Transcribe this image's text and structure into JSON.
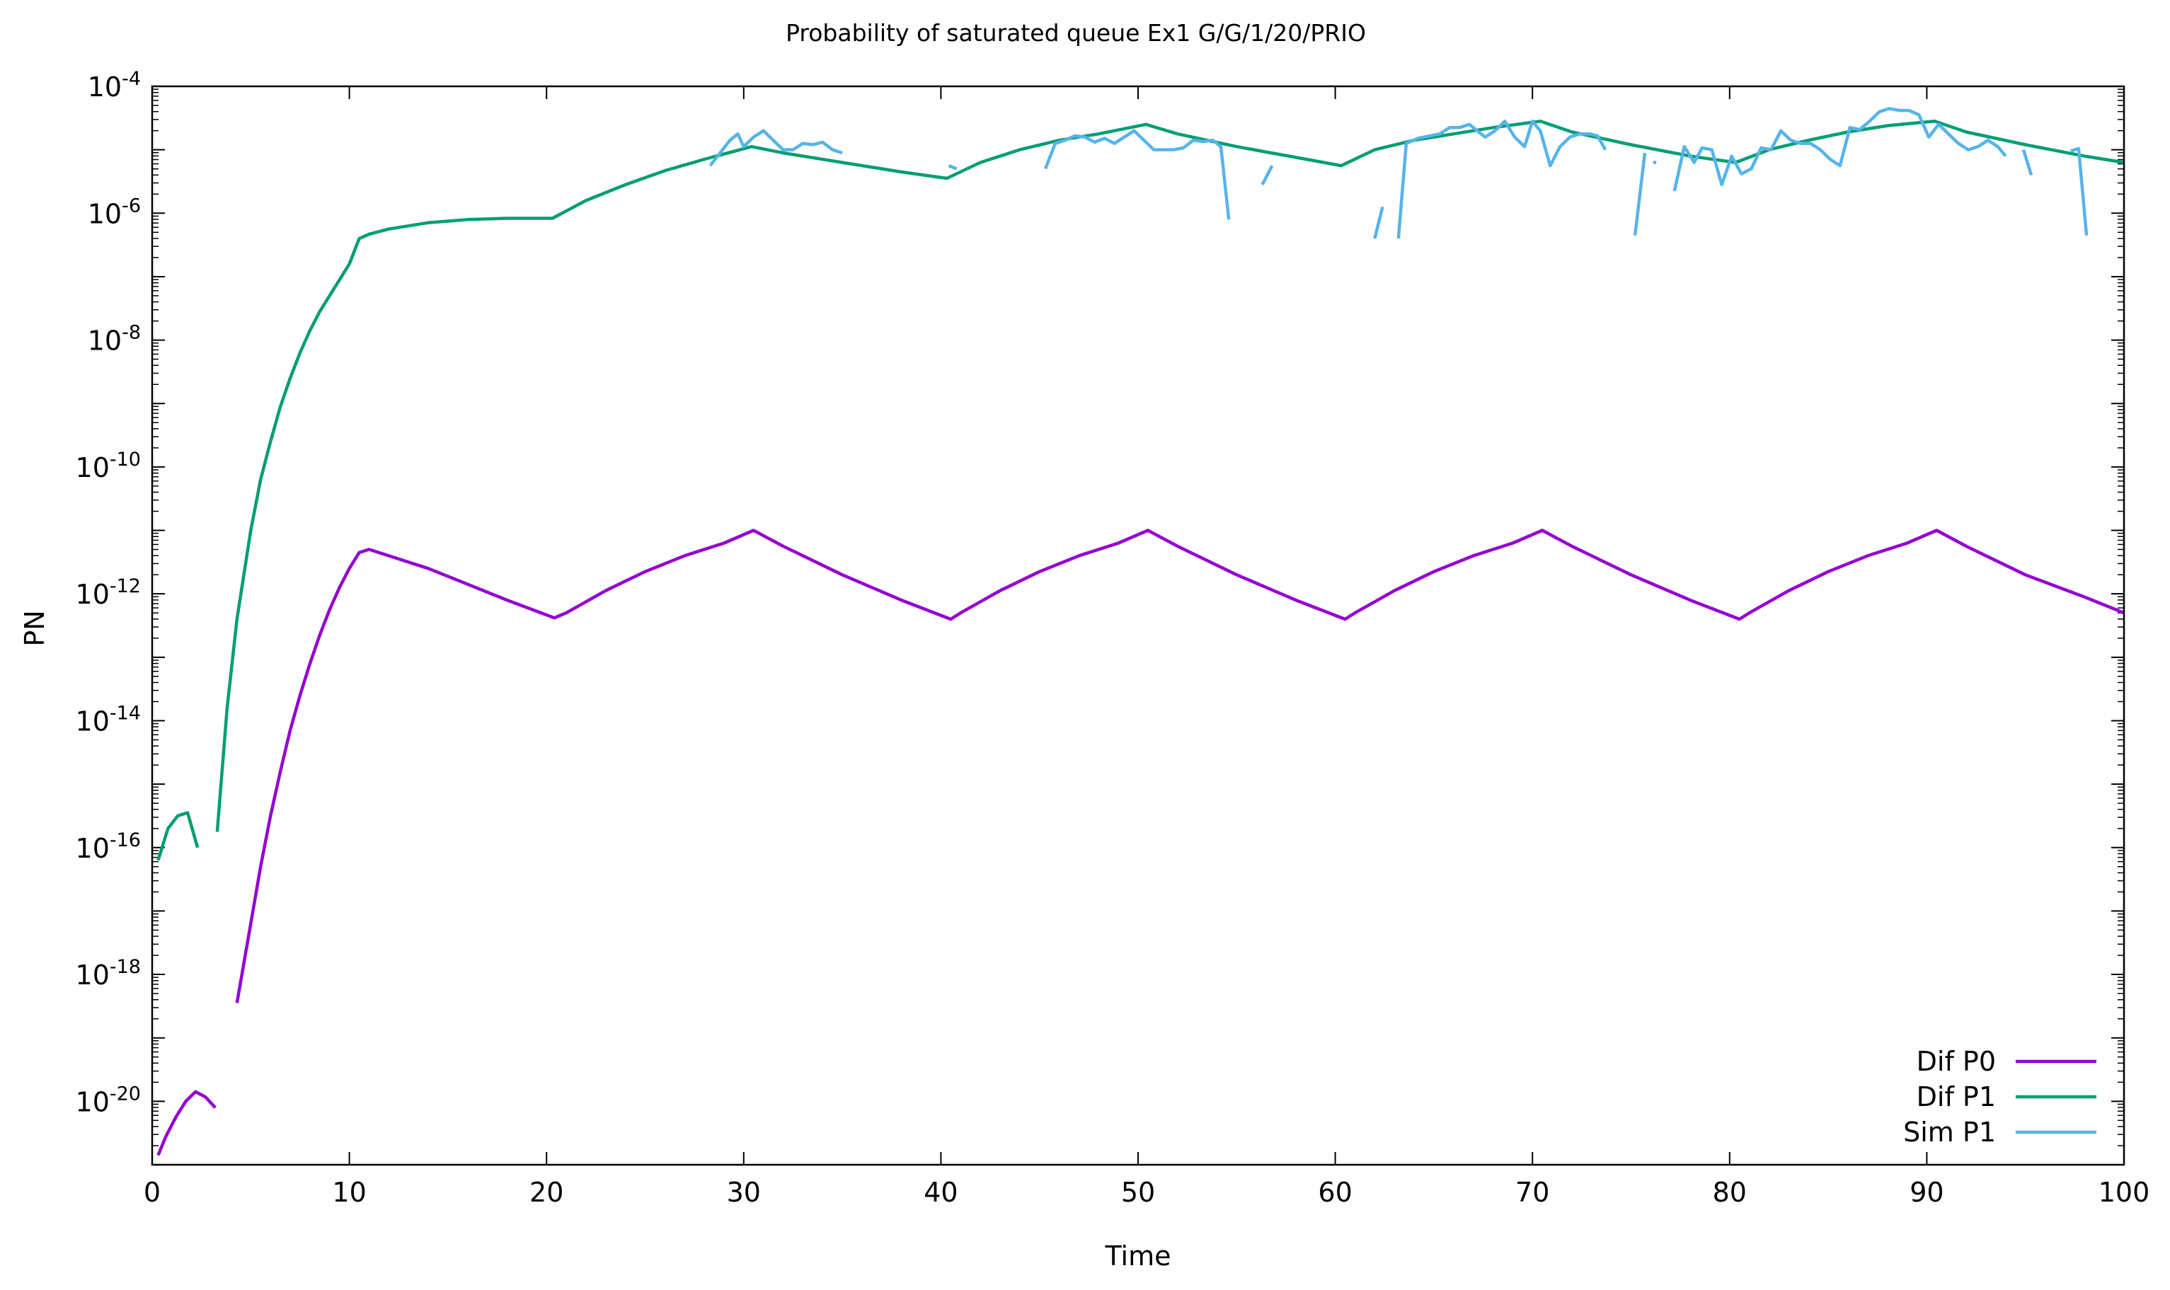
{
  "chart_data": {
    "type": "line",
    "title": "Probability of saturated queue Ex1 G/G/1/20/PRIO",
    "xlabel": "Time",
    "ylabel": "PN",
    "xlim": [
      0,
      100
    ],
    "ylim_log10": [
      -21,
      -4
    ],
    "yscale": "log",
    "grid": false,
    "legend_position": "bottom-right",
    "x_ticks": [
      "0",
      "10",
      "20",
      "30",
      "40",
      "50",
      "60",
      "70",
      "80",
      "90",
      "100"
    ],
    "y_ticks": [
      {
        "base": "10",
        "exp": "-20"
      },
      {
        "base": "10",
        "exp": "-18"
      },
      {
        "base": "10",
        "exp": "-16"
      },
      {
        "base": "10",
        "exp": "-14"
      },
      {
        "base": "10",
        "exp": "-12"
      },
      {
        "base": "10",
        "exp": "-10"
      },
      {
        "base": "10",
        "exp": "-8"
      },
      {
        "base": "10",
        "exp": "-6"
      },
      {
        "base": "10",
        "exp": "-4"
      }
    ],
    "series": [
      {
        "name": "Dif P0",
        "color": "#9400d3",
        "segments": [
          [
            [
              0.3,
              -20.85
            ],
            [
              0.7,
              -20.55
            ],
            [
              1.2,
              -20.25
            ],
            [
              1.7,
              -20.0
            ],
            [
              2.2,
              -19.85
            ],
            [
              2.7,
              -19.93
            ],
            [
              3.2,
              -20.1
            ]
          ],
          [
            [
              4.3,
              -18.45
            ],
            [
              5,
              -17.2
            ],
            [
              5.5,
              -16.3
            ],
            [
              6,
              -15.5
            ],
            [
              6.5,
              -14.8
            ],
            [
              7,
              -14.15
            ],
            [
              7.5,
              -13.6
            ],
            [
              8,
              -13.1
            ],
            [
              8.5,
              -12.65
            ],
            [
              9,
              -12.25
            ],
            [
              9.5,
              -11.9
            ],
            [
              10,
              -11.6
            ],
            [
              10.5,
              -11.35
            ],
            [
              11,
              -11.3
            ],
            [
              12,
              -11.4
            ],
            [
              14,
              -11.6
            ],
            [
              16,
              -11.85
            ],
            [
              18,
              -12.1
            ],
            [
              20.4,
              -12.38
            ],
            [
              21,
              -12.3
            ],
            [
              23,
              -11.95
            ],
            [
              25,
              -11.65
            ],
            [
              27,
              -11.4
            ],
            [
              29,
              -11.2
            ],
            [
              30.5,
              -11.0
            ],
            [
              32,
              -11.25
            ],
            [
              35,
              -11.7
            ],
            [
              38,
              -12.1
            ],
            [
              40.5,
              -12.4
            ],
            [
              41,
              -12.3
            ],
            [
              43,
              -11.95
            ],
            [
              45,
              -11.65
            ],
            [
              47,
              -11.4
            ],
            [
              49,
              -11.2
            ],
            [
              50.5,
              -11.0
            ],
            [
              52,
              -11.25
            ],
            [
              55,
              -11.7
            ],
            [
              58,
              -12.1
            ],
            [
              60.5,
              -12.4
            ],
            [
              61,
              -12.3
            ],
            [
              63,
              -11.95
            ],
            [
              65,
              -11.65
            ],
            [
              67,
              -11.4
            ],
            [
              69,
              -11.2
            ],
            [
              70.5,
              -11.0
            ],
            [
              72,
              -11.25
            ],
            [
              75,
              -11.7
            ],
            [
              78,
              -12.1
            ],
            [
              80.5,
              -12.4
            ],
            [
              81,
              -12.3
            ],
            [
              83,
              -11.95
            ],
            [
              85,
              -11.65
            ],
            [
              87,
              -11.4
            ],
            [
              89,
              -11.2
            ],
            [
              90.5,
              -11.0
            ],
            [
              92,
              -11.25
            ],
            [
              95,
              -11.7
            ],
            [
              98,
              -12.05
            ],
            [
              100,
              -12.3
            ]
          ]
        ]
      },
      {
        "name": "Dif P1",
        "color": "#009e73",
        "segments": [
          [
            [
              0.3,
              -16.2
            ],
            [
              0.8,
              -15.7
            ],
            [
              1.3,
              -15.5
            ],
            [
              1.8,
              -15.45
            ],
            [
              2.3,
              -16.0
            ]
          ],
          [
            [
              3.3,
              -15.75
            ],
            [
              3.8,
              -13.8
            ],
            [
              4.3,
              -12.4
            ],
            [
              5,
              -11.0
            ],
            [
              5.5,
              -10.2
            ],
            [
              6,
              -9.6
            ],
            [
              6.5,
              -9.05
            ],
            [
              7,
              -8.6
            ],
            [
              7.5,
              -8.2
            ],
            [
              8,
              -7.85
            ],
            [
              8.5,
              -7.55
            ],
            [
              9,
              -7.3
            ],
            [
              9.5,
              -7.05
            ],
            [
              10,
              -6.8
            ],
            [
              10.5,
              -6.4
            ],
            [
              11,
              -6.33
            ],
            [
              12,
              -6.25
            ],
            [
              14,
              -6.15
            ],
            [
              16,
              -6.1
            ],
            [
              18,
              -6.08
            ],
            [
              20.3,
              -6.08
            ],
            [
              22,
              -5.8
            ],
            [
              24,
              -5.55
            ],
            [
              26,
              -5.33
            ],
            [
              28,
              -5.15
            ],
            [
              30.4,
              -4.95
            ],
            [
              32,
              -5.05
            ],
            [
              35,
              -5.2
            ],
            [
              38,
              -5.35
            ],
            [
              40.3,
              -5.45
            ],
            [
              42,
              -5.2
            ],
            [
              44,
              -5.0
            ],
            [
              46,
              -4.85
            ],
            [
              48,
              -4.75
            ],
            [
              50.4,
              -4.6
            ],
            [
              52,
              -4.75
            ],
            [
              55,
              -4.95
            ],
            [
              58,
              -5.12
            ],
            [
              60.3,
              -5.25
            ],
            [
              62,
              -5.0
            ],
            [
              64,
              -4.85
            ],
            [
              66,
              -4.75
            ],
            [
              68,
              -4.65
            ],
            [
              70.4,
              -4.55
            ],
            [
              72,
              -4.72
            ],
            [
              75,
              -4.92
            ],
            [
              78,
              -5.1
            ],
            [
              80.3,
              -5.2
            ],
            [
              82,
              -5.0
            ],
            [
              84,
              -4.85
            ],
            [
              86,
              -4.72
            ],
            [
              88,
              -4.62
            ],
            [
              90.4,
              -4.55
            ],
            [
              92,
              -4.72
            ],
            [
              95,
              -4.92
            ],
            [
              98,
              -5.1
            ],
            [
              100,
              -5.2
            ]
          ]
        ]
      },
      {
        "name": "Sim P1",
        "color": "#56b4e9",
        "segments": [
          [
            [
              28.3,
              -5.25
            ],
            [
              28.8,
              -5.05
            ],
            [
              29.3,
              -4.85
            ],
            [
              29.7,
              -4.75
            ],
            [
              30,
              -4.95
            ],
            [
              30.5,
              -4.8
            ],
            [
              31,
              -4.7
            ],
            [
              31.5,
              -4.85
            ],
            [
              32,
              -5.0
            ],
            [
              32.5,
              -5.0
            ],
            [
              33,
              -4.9
            ],
            [
              33.5,
              -4.92
            ],
            [
              34,
              -4.88
            ],
            [
              34.5,
              -5.0
            ],
            [
              35,
              -5.05
            ]
          ],
          [
            [
              40.4,
              -5.25
            ],
            [
              40.8,
              -5.3
            ]
          ],
          [
            [
              45.3,
              -5.3
            ],
            [
              45.8,
              -4.9
            ],
            [
              46.3,
              -4.85
            ],
            [
              46.8,
              -4.78
            ],
            [
              47.3,
              -4.8
            ],
            [
              47.8,
              -4.88
            ],
            [
              48.3,
              -4.82
            ],
            [
              48.8,
              -4.9
            ],
            [
              49.3,
              -4.8
            ],
            [
              49.8,
              -4.7
            ],
            [
              50.3,
              -4.85
            ],
            [
              50.8,
              -5.0
            ],
            [
              51.3,
              -5.0
            ],
            [
              51.8,
              -5.0
            ],
            [
              52.3,
              -4.97
            ],
            [
              52.8,
              -4.85
            ],
            [
              53.3,
              -4.87
            ],
            [
              53.8,
              -4.85
            ],
            [
              54.2,
              -4.95
            ],
            [
              54.6,
              -6.1
            ]
          ],
          [
            [
              56.3,
              -5.55
            ],
            [
              56.8,
              -5.25
            ]
          ],
          [
            [
              62,
              -6.4
            ],
            [
              62.4,
              -5.9
            ]
          ],
          [
            [
              63.2,
              -6.4
            ],
            [
              63.6,
              -4.9
            ],
            [
              64.2,
              -4.82
            ],
            [
              64.8,
              -4.78
            ],
            [
              65.3,
              -4.75
            ],
            [
              65.8,
              -4.65
            ],
            [
              66.3,
              -4.65
            ],
            [
              66.8,
              -4.6
            ],
            [
              67.2,
              -4.7
            ],
            [
              67.6,
              -4.8
            ],
            [
              68.1,
              -4.7
            ],
            [
              68.6,
              -4.55
            ],
            [
              69.1,
              -4.8
            ],
            [
              69.6,
              -4.95
            ],
            [
              70,
              -4.55
            ],
            [
              70.4,
              -4.7
            ],
            [
              70.9,
              -5.25
            ],
            [
              71.4,
              -4.95
            ],
            [
              71.9,
              -4.8
            ],
            [
              72.4,
              -4.75
            ],
            [
              72.9,
              -4.75
            ],
            [
              73.3,
              -4.78
            ],
            [
              73.7,
              -5.0
            ]
          ],
          [
            [
              75.2,
              -6.35
            ],
            [
              75.7,
              -5.05
            ]
          ],
          [
            [
              76.2,
              -5.2
            ]
          ],
          [
            [
              77.2,
              -5.65
            ],
            [
              77.7,
              -4.95
            ],
            [
              78.2,
              -5.2
            ],
            [
              78.6,
              -4.97
            ],
            [
              79.1,
              -5.0
            ],
            [
              79.6,
              -5.55
            ],
            [
              80.1,
              -5.1
            ],
            [
              80.6,
              -5.38
            ],
            [
              81.1,
              -5.3
            ],
            [
              81.6,
              -4.97
            ],
            [
              82.1,
              -5.0
            ],
            [
              82.6,
              -4.7
            ],
            [
              83.1,
              -4.85
            ],
            [
              83.6,
              -4.9
            ],
            [
              84.1,
              -4.9
            ],
            [
              84.6,
              -5.0
            ],
            [
              85.1,
              -5.15
            ],
            [
              85.6,
              -5.25
            ],
            [
              86.1,
              -4.65
            ],
            [
              86.6,
              -4.68
            ],
            [
              87.1,
              -4.55
            ],
            [
              87.6,
              -4.4
            ],
            [
              88.1,
              -4.35
            ],
            [
              88.6,
              -4.38
            ],
            [
              89.1,
              -4.38
            ],
            [
              89.6,
              -4.45
            ],
            [
              90.1,
              -4.8
            ],
            [
              90.6,
              -4.6
            ],
            [
              91.1,
              -4.75
            ],
            [
              91.6,
              -4.9
            ],
            [
              92.1,
              -5.0
            ],
            [
              92.6,
              -4.95
            ],
            [
              93.1,
              -4.85
            ],
            [
              93.6,
              -4.95
            ],
            [
              94,
              -5.1
            ]
          ],
          [
            [
              94.9,
              -5.0
            ],
            [
              95.3,
              -5.4
            ]
          ],
          [
            [
              97.3,
              -5.02
            ],
            [
              97.7,
              -4.98
            ],
            [
              98.1,
              -6.35
            ]
          ]
        ]
      }
    ]
  }
}
